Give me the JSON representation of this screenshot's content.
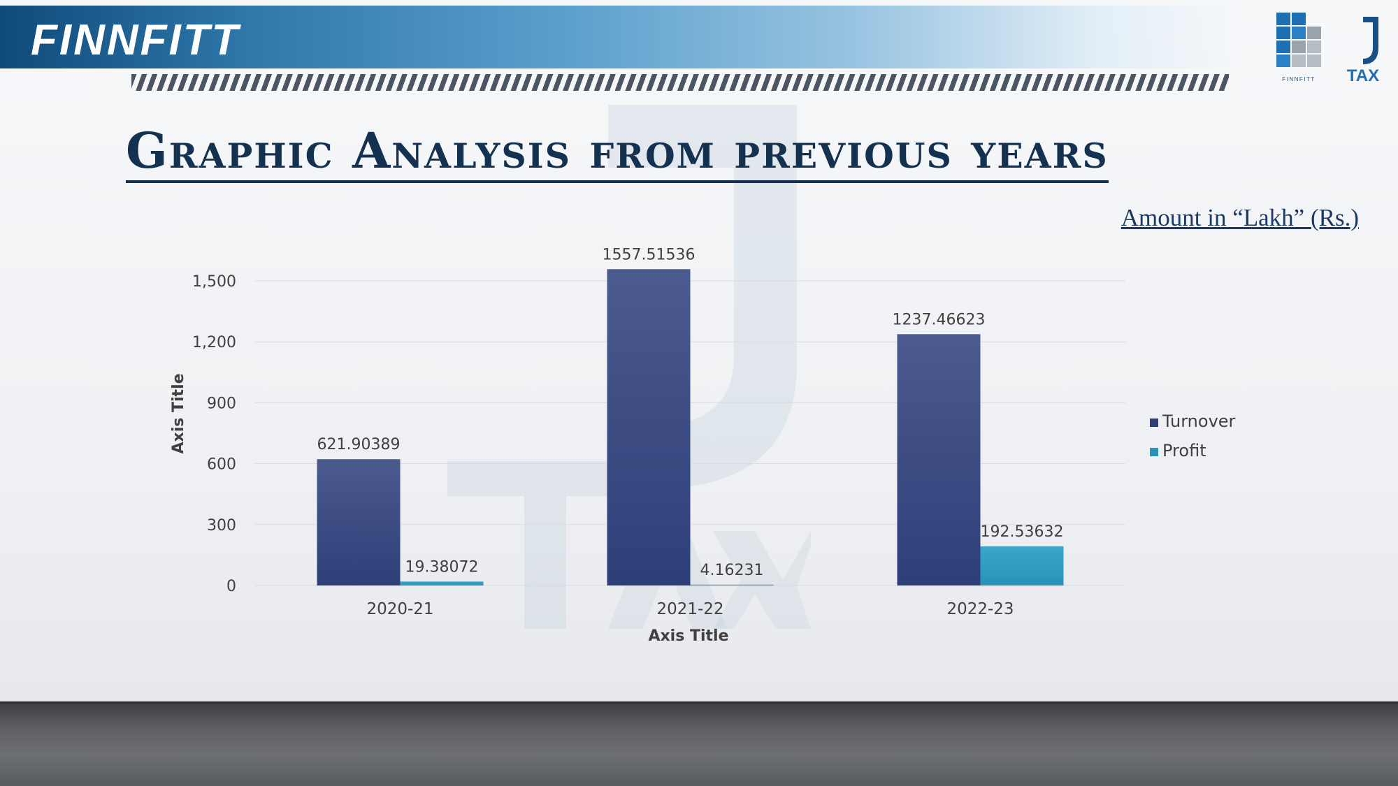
{
  "header": {
    "brand": "FINNFITT",
    "logo_finnfitt_caption": "FINNFITT",
    "logo_jtax_caption": "TAX"
  },
  "slide": {
    "title": "Graphic Analysis from previous years",
    "amount_note": "Amount in “Lakh” (Rs.)"
  },
  "colors": {
    "turnover": "#2e3f78",
    "profit": "#2a92b8",
    "title": "#14324f"
  },
  "chart_data": {
    "type": "bar",
    "categories": [
      "2020-21",
      "2021-22",
      "2022-23"
    ],
    "series": [
      {
        "name": "Turnover",
        "values": [
          621.90389,
          1557.51536,
          1237.46623
        ],
        "labels": [
          "621.90389",
          "1557.51536",
          "1237.46623"
        ]
      },
      {
        "name": "Profit",
        "values": [
          19.38072,
          4.16231,
          192.53632
        ],
        "labels": [
          "19.38072",
          "4.16231",
          "192.53632"
        ]
      }
    ],
    "xlabel": "Axis Title",
    "ylabel": "Axis Title",
    "ylim": [
      0,
      1500
    ],
    "yticks": [
      0,
      300,
      600,
      900,
      1200,
      1500
    ],
    "ytick_labels": [
      "0",
      "300",
      "600",
      "900",
      "1,200",
      "1,500"
    ],
    "legend": "right",
    "grid": true
  }
}
